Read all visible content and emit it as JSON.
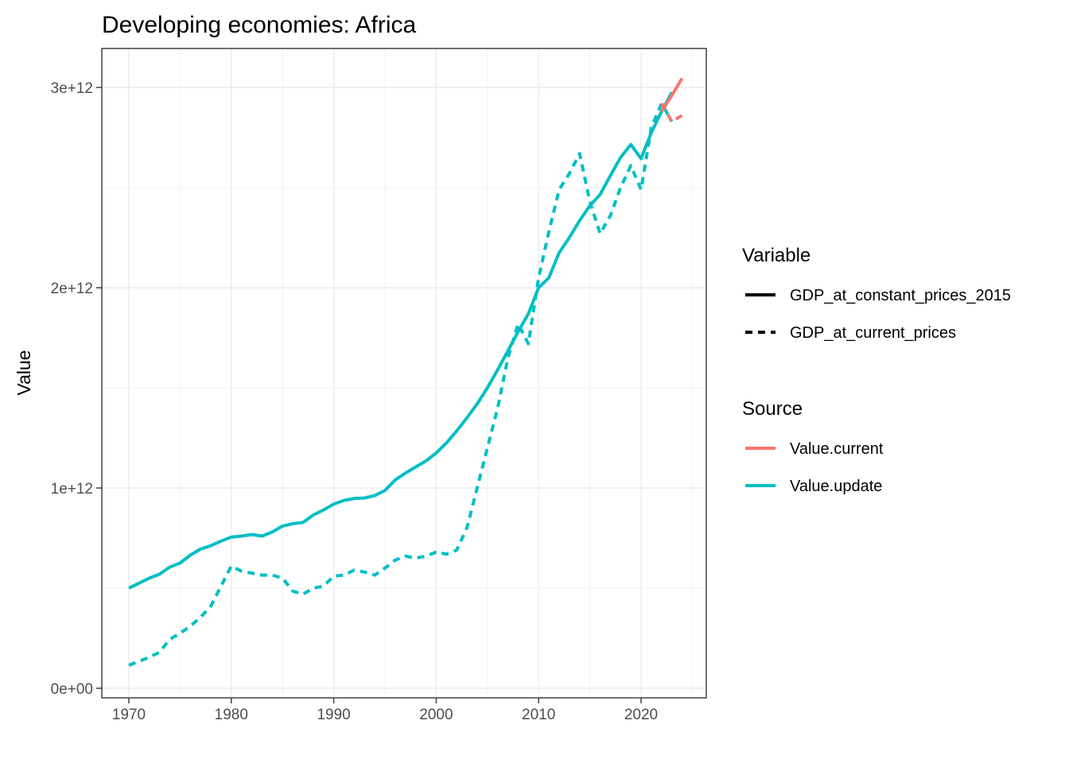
{
  "chart_data": {
    "type": "line",
    "title": "Developing economies: Africa",
    "xlabel": "",
    "ylabel": "Value",
    "xlim": [
      1970,
      2024
    ],
    "ylim": [
      0,
      3000000000000
    ],
    "x_ticks": [
      1970,
      1980,
      1990,
      2000,
      2010,
      2020
    ],
    "y_ticks": [
      {
        "value": 0,
        "label": "0e+00"
      },
      {
        "value": 1000000000000,
        "label": "1e+12"
      },
      {
        "value": 2000000000000,
        "label": "2e+12"
      },
      {
        "value": 3000000000000,
        "label": "3e+12"
      }
    ],
    "grid": true,
    "legend_position": "right",
    "legends": [
      {
        "title": "Variable",
        "entries": [
          {
            "label": "GDP_at_constant_prices_2015",
            "linetype": "solid"
          },
          {
            "label": "GDP_at_current_prices",
            "linetype": "dashed"
          }
        ]
      },
      {
        "title": "Source",
        "entries": [
          {
            "label": "Value.current",
            "color": "#F8766D"
          },
          {
            "label": "Value.update",
            "color": "#00BFC4"
          }
        ]
      }
    ],
    "series": [
      {
        "variable": "GDP_at_constant_prices_2015",
        "source": "Value.update",
        "color": "#00BFC4",
        "linetype": "solid",
        "x": [
          1970,
          1971,
          1972,
          1973,
          1974,
          1975,
          1976,
          1977,
          1978,
          1979,
          1980,
          1981,
          1982,
          1983,
          1984,
          1985,
          1986,
          1987,
          1988,
          1989,
          1990,
          1991,
          1992,
          1993,
          1994,
          1995,
          1996,
          1997,
          1998,
          1999,
          2000,
          2001,
          2002,
          2003,
          2004,
          2005,
          2006,
          2007,
          2008,
          2009,
          2010,
          2011,
          2012,
          2013,
          2014,
          2015,
          2016,
          2017,
          2018,
          2019,
          2020,
          2021,
          2022,
          2023
        ],
        "y": [
          500000000000,
          525000000000,
          550000000000,
          570000000000,
          605000000000,
          625000000000,
          665000000000,
          695000000000,
          712000000000,
          735000000000,
          755000000000,
          760000000000,
          768000000000,
          760000000000,
          780000000000,
          810000000000,
          822000000000,
          828000000000,
          865000000000,
          890000000000,
          920000000000,
          938000000000,
          948000000000,
          950000000000,
          962000000000,
          988000000000,
          1040000000000,
          1075000000000,
          1105000000000,
          1135000000000,
          1175000000000,
          1225000000000,
          1285000000000,
          1350000000000,
          1420000000000,
          1500000000000,
          1590000000000,
          1685000000000,
          1780000000000,
          1870000000000,
          2000000000000,
          2050000000000,
          2175000000000,
          2250000000000,
          2335000000000,
          2410000000000,
          2465000000000,
          2560000000000,
          2650000000000,
          2715000000000,
          2645000000000,
          2775000000000,
          2880000000000,
          2975000000000
        ]
      },
      {
        "variable": "GDP_at_current_prices",
        "source": "Value.update",
        "color": "#00BFC4",
        "linetype": "dashed",
        "x": [
          1970,
          1971,
          1972,
          1973,
          1974,
          1975,
          1976,
          1977,
          1978,
          1979,
          1980,
          1981,
          1982,
          1983,
          1984,
          1985,
          1986,
          1987,
          1988,
          1989,
          1990,
          1991,
          1992,
          1993,
          1994,
          1995,
          1996,
          1997,
          1998,
          1999,
          2000,
          2001,
          2002,
          2003,
          2004,
          2005,
          2006,
          2007,
          2008,
          2009,
          2010,
          2011,
          2012,
          2013,
          2014,
          2015,
          2016,
          2017,
          2018,
          2019,
          2020,
          2021,
          2022,
          2023
        ],
        "y": [
          115000000000,
          135000000000,
          155000000000,
          180000000000,
          245000000000,
          275000000000,
          310000000000,
          355000000000,
          410000000000,
          510000000000,
          610000000000,
          585000000000,
          575000000000,
          565000000000,
          565000000000,
          550000000000,
          485000000000,
          470000000000,
          500000000000,
          510000000000,
          560000000000,
          565000000000,
          590000000000,
          580000000000,
          565000000000,
          600000000000,
          640000000000,
          660000000000,
          650000000000,
          660000000000,
          680000000000,
          670000000000,
          690000000000,
          800000000000,
          1000000000000,
          1200000000000,
          1400000000000,
          1650000000000,
          1820000000000,
          1720000000000,
          2050000000000,
          2280000000000,
          2490000000000,
          2570000000000,
          2670000000000,
          2430000000000,
          2270000000000,
          2360000000000,
          2500000000000,
          2610000000000,
          2490000000000,
          2800000000000,
          2920000000000,
          2830000000000
        ]
      },
      {
        "variable": "GDP_at_constant_prices_2015",
        "source": "Value.current",
        "color": "#F8766D",
        "linetype": "solid",
        "x": [
          2022,
          2023,
          2024
        ],
        "y": [
          2880000000000,
          2960000000000,
          3045000000000
        ]
      },
      {
        "variable": "GDP_at_current_prices",
        "source": "Value.current",
        "color": "#F8766D",
        "linetype": "dashed",
        "x": [
          2022,
          2023,
          2024
        ],
        "y": [
          2920000000000,
          2830000000000,
          2860000000000
        ]
      }
    ]
  }
}
